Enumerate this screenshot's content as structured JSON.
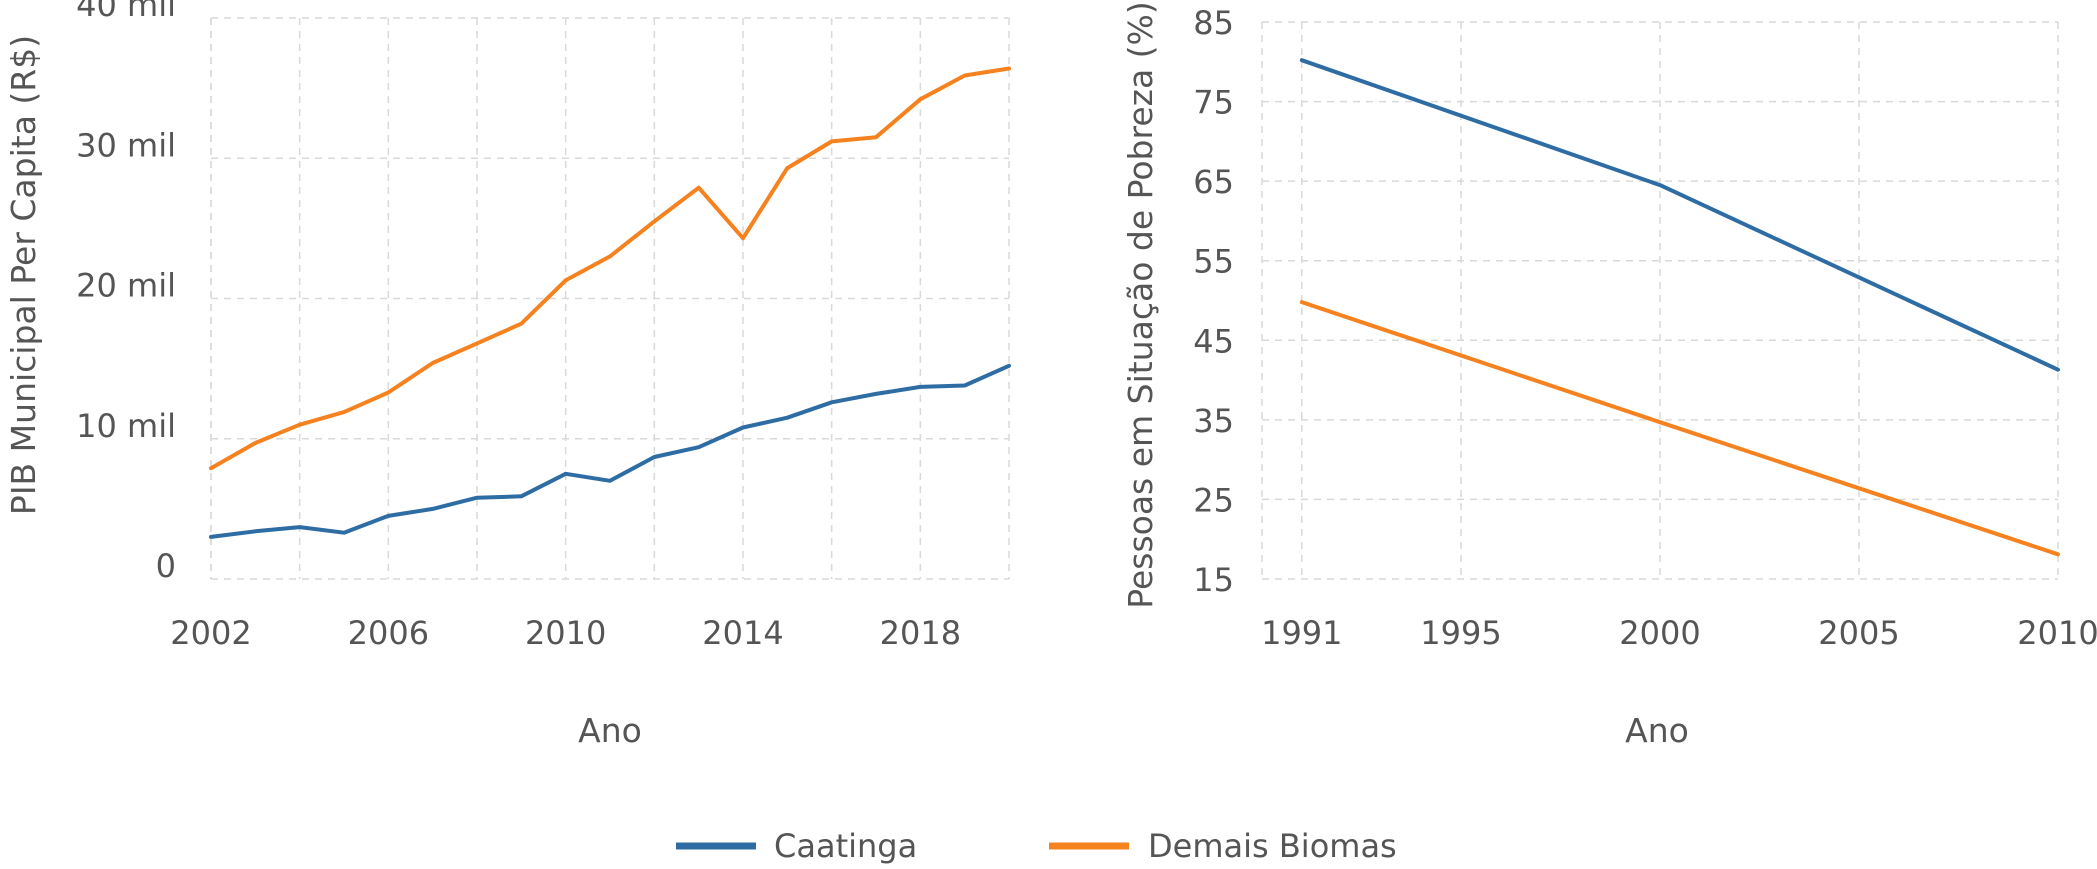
{
  "colors": {
    "caatinga": "#2e6ca4",
    "demais": "#f5821f"
  },
  "legend": [
    {
      "label": "Caatinga",
      "color": "#2e6ca4"
    },
    {
      "label": "Demais Biomas",
      "color": "#f5821f"
    }
  ],
  "chart_data": [
    {
      "type": "line",
      "xlabel": "Ano",
      "ylabel": "PIB Municipal Per Capita (R$)",
      "xlim": [
        2002,
        2020
      ],
      "ylim": [
        0,
        40000
      ],
      "xticks": [
        2002,
        2006,
        2010,
        2014,
        2018
      ],
      "xtick_labels": [
        "2002",
        "2006",
        "2010",
        "2014",
        "2018"
      ],
      "yticks": [
        0,
        10000,
        20000,
        30000,
        40000
      ],
      "ytick_labels": [
        "0",
        "10 mil",
        "20 mil",
        "30 mil",
        "40 mil"
      ],
      "grid": true,
      "x": [
        2002,
        2003,
        2004,
        2005,
        2006,
        2007,
        2008,
        2009,
        2010,
        2011,
        2012,
        2013,
        2014,
        2015,
        2016,
        2017,
        2018,
        2019,
        2020
      ],
      "series": [
        {
          "name": "Caatinga",
          "color": "#2e6ca4",
          "values": [
            3000,
            3400,
            3700,
            3300,
            4500,
            5000,
            5800,
            5900,
            7500,
            7000,
            8700,
            9400,
            10800,
            11500,
            12600,
            13200,
            13700,
            13800,
            15200
          ]
        },
        {
          "name": "Demais Biomas",
          "color": "#f5821f",
          "values": [
            7900,
            9700,
            11000,
            11900,
            13300,
            15400,
            16800,
            18200,
            21300,
            23000,
            25500,
            27900,
            24300,
            29300,
            31200,
            31500,
            34200,
            35900,
            36400
          ]
        }
      ]
    },
    {
      "type": "line",
      "xlabel": "Ano",
      "ylabel": "Pessoas em Situação de Pobreza (%)",
      "xlim": [
        1990,
        2010
      ],
      "ylim": [
        15,
        85
      ],
      "xticks": [
        1991,
        1995,
        2000,
        2005,
        2010
      ],
      "xtick_labels": [
        "1991",
        "1995",
        "2000",
        "2005",
        "2010"
      ],
      "yticks": [
        15,
        25,
        35,
        45,
        55,
        65,
        75,
        85
      ],
      "ytick_labels": [
        "15",
        "25",
        "35",
        "45",
        "55",
        "65",
        "75",
        "85"
      ],
      "grid": true,
      "x": [
        1991,
        2000,
        2010
      ],
      "series": [
        {
          "name": "Caatinga",
          "color": "#2e6ca4",
          "values": [
            80.2,
            64.5,
            41.3
          ]
        },
        {
          "name": "Demais Biomas",
          "color": "#f5821f",
          "values": [
            49.8,
            34.7,
            18.1
          ]
        }
      ]
    }
  ]
}
